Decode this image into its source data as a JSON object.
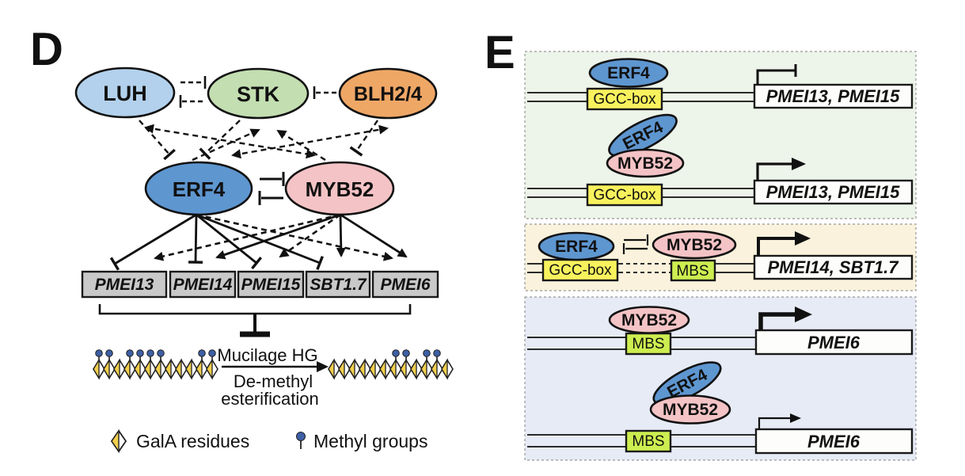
{
  "colors": {
    "luh": "#b3d1ec",
    "stk": "#c3deb1",
    "blh24": "#efa766",
    "erf4": "#5e96d0",
    "myb52": "#f4c3c5",
    "gene_box_gray": "#c9c9c9",
    "gcc_box": "#f8f25d",
    "mbs": "#cdee50",
    "gala_yellow": "#f2cf4b",
    "methyl_blue": "#3d5fa5",
    "section_green": "#edf4e9",
    "section_cream": "#faf2dc",
    "section_blue": "#e7ebf6",
    "gene_box_white": "#fdfdfb"
  },
  "panels": {
    "d": {
      "label": "D",
      "nodes": {
        "luh": "LUH",
        "stk": "STK",
        "blh24": "BLH2/4",
        "erf4": "ERF4",
        "myb52": "MYB52"
      },
      "genes": [
        "PMEI13",
        "PMEI14",
        "PMEI15",
        "SBT1.7",
        "PMEI6"
      ],
      "edges": [
        {
          "from": "LUH",
          "to": "STK",
          "type": "inhibit",
          "style": "dashed"
        },
        {
          "from": "STK",
          "to": "LUH",
          "type": "inhibit",
          "style": "dashed"
        },
        {
          "from": "BLH2/4",
          "to": "STK",
          "type": "inhibit",
          "style": "dashed"
        },
        {
          "from": "LUH",
          "to": "ERF4",
          "type": "inhibit",
          "style": "dashed"
        },
        {
          "from": "STK",
          "to": "ERF4",
          "type": "inhibit",
          "style": "dashed"
        },
        {
          "from": "ERF4",
          "to": "STK",
          "type": "activate",
          "style": "dashed"
        },
        {
          "from": "MYB52",
          "to": "STK",
          "type": "activate",
          "style": "dashed"
        },
        {
          "from": "BLH2/4",
          "to": "MYB52",
          "type": "inhibit",
          "style": "dashed"
        },
        {
          "from": "LUH",
          "to": "MYB52",
          "type": "activate",
          "style": "dashed",
          "bidirectional": true
        },
        {
          "from": "ERF4",
          "to": "BLH2/4",
          "type": "activate",
          "style": "dashed",
          "bidirectional": true
        },
        {
          "from": "ERF4",
          "to": "MYB52",
          "type": "inhibit",
          "style": "solid"
        },
        {
          "from": "MYB52",
          "to": "ERF4",
          "type": "inhibit",
          "style": "solid"
        },
        {
          "from": "ERF4",
          "to": "PMEI13",
          "type": "inhibit",
          "style": "solid"
        },
        {
          "from": "ERF4",
          "to": "PMEI14",
          "type": "inhibit",
          "style": "solid"
        },
        {
          "from": "ERF4",
          "to": "PMEI15",
          "type": "inhibit",
          "style": "solid"
        },
        {
          "from": "ERF4",
          "to": "SBT1.7",
          "type": "inhibit",
          "style": "solid"
        },
        {
          "from": "ERF4",
          "to": "PMEI6",
          "type": "activate",
          "style": "dashed"
        },
        {
          "from": "MYB52",
          "to": "PMEI13",
          "type": "activate",
          "style": "dashed"
        },
        {
          "from": "MYB52",
          "to": "PMEI14",
          "type": "activate",
          "style": "solid"
        },
        {
          "from": "MYB52",
          "to": "PMEI15",
          "type": "activate",
          "style": "dashed"
        },
        {
          "from": "MYB52",
          "to": "SBT1.7",
          "type": "activate",
          "style": "solid"
        },
        {
          "from": "MYB52",
          "to": "PMEI6",
          "type": "activate",
          "style": "solid"
        },
        {
          "from": "PMEI13/PMEI14/PMEI15/SBT1.7/PMEI6",
          "to": "Mucilage HG de-methylesterification",
          "type": "inhibit",
          "style": "solid"
        }
      ],
      "reaction": {
        "title": "Mucilage HG",
        "line1": "De-methyl",
        "line2": "esterification",
        "residues_per_chain": 12,
        "left_chain_methyl": [
          1,
          1,
          0,
          1,
          1,
          1,
          1,
          0,
          0,
          0,
          1,
          1
        ],
        "right_chain_methyl": [
          0,
          0,
          0,
          0,
          0,
          0,
          1,
          1,
          0,
          1,
          1,
          0
        ]
      },
      "legend": [
        {
          "icon": "gala-diamond-icon",
          "label": "GalA residues"
        },
        {
          "icon": "methyl-pin-icon",
          "label": "Methyl groups"
        }
      ]
    },
    "e": {
      "label": "E",
      "sections": [
        {
          "name": "pmei13-pmei15-regulation",
          "rows": [
            {
              "tfs": [
                "ERF4"
              ],
              "element": "GCC-box",
              "gene": "PMEI13, PMEI15",
              "transcription": "repressed"
            },
            {
              "tfs": [
                "ERF4",
                "MYB52"
              ],
              "element": "GCC-box",
              "gene": "PMEI13, PMEI15",
              "transcription": "active"
            }
          ]
        },
        {
          "name": "pmei14-sbt1.7-regulation",
          "rows": [
            {
              "tfs": [
                "ERF4",
                "MYB52"
              ],
              "elements": [
                "GCC-box",
                "MBS"
              ],
              "interaction": "mutual-inhibition",
              "gene": "PMEI14, SBT1.7",
              "transcription": "active"
            }
          ]
        },
        {
          "name": "pmei6-regulation",
          "rows": [
            {
              "tfs": [
                "MYB52"
              ],
              "element": "MBS",
              "gene": "PMEI6",
              "transcription": "strongly-active"
            },
            {
              "tfs": [
                "ERF4",
                "MYB52"
              ],
              "element": "MBS",
              "complex_bound": false,
              "gene": "PMEI6",
              "transcription": "weakly-active"
            }
          ]
        }
      ]
    }
  }
}
